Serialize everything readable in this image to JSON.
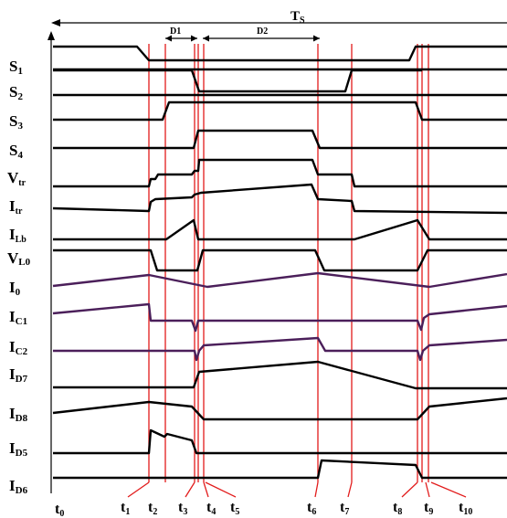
{
  "period": {
    "label": "T",
    "sub": "S"
  },
  "intervals": [
    {
      "label": "D1"
    },
    {
      "label": "D2"
    }
  ],
  "signals": [
    {
      "name": "S",
      "sub": "1"
    },
    {
      "name": "S",
      "sub": "2"
    },
    {
      "name": "S",
      "sub": "3"
    },
    {
      "name": "S",
      "sub": "4"
    },
    {
      "name": "V",
      "sub": "tr"
    },
    {
      "name": "I",
      "sub": "tr"
    },
    {
      "name": "I",
      "sub": "Lb"
    },
    {
      "name": "V",
      "sub": "L0"
    },
    {
      "name": "I",
      "sub": "0"
    },
    {
      "name": "I",
      "sub": "C1"
    },
    {
      "name": "I",
      "sub": "C2"
    },
    {
      "name": "I",
      "sub": "D7"
    },
    {
      "name": "I",
      "sub": "D8"
    },
    {
      "name": "I",
      "sub": "D5"
    },
    {
      "name": "I",
      "sub": "D6"
    }
  ],
  "time_marks": [
    {
      "name": "t",
      "sub": "0"
    },
    {
      "name": "t",
      "sub": "1"
    },
    {
      "name": "t",
      "sub": "2"
    },
    {
      "name": "t",
      "sub": "3"
    },
    {
      "name": "t",
      "sub": "4"
    },
    {
      "name": "t",
      "sub": "5"
    },
    {
      "name": "t",
      "sub": "6"
    },
    {
      "name": "t",
      "sub": "7"
    },
    {
      "name": "t",
      "sub": "8"
    },
    {
      "name": "t",
      "sub": "9"
    },
    {
      "name": "t",
      "sub": "10"
    }
  ],
  "colors": {
    "signal": "#000000",
    "current_purple": "#4b1f5a",
    "marker_red": "#e21b1b"
  }
}
